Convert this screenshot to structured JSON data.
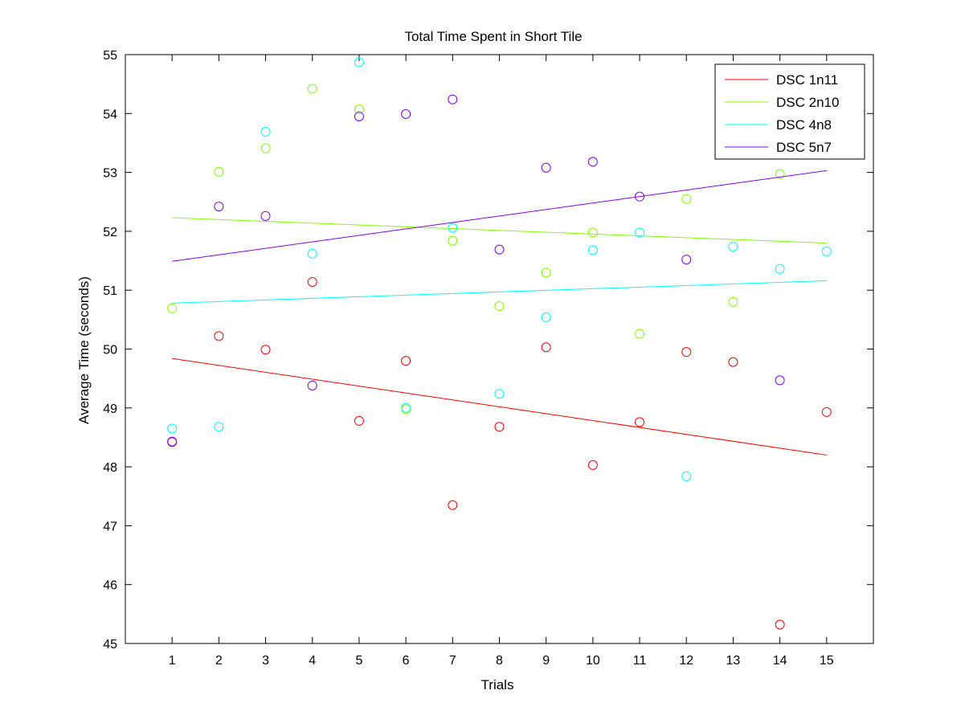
{
  "chart_data": {
    "type": "scatter",
    "title": "Total Time Spent in Short Tile",
    "xlabel": "Trials",
    "ylabel": "Average Time (seconds)",
    "xlim": [
      0,
      16
    ],
    "ylim": [
      45,
      55
    ],
    "xticks": [
      1,
      2,
      3,
      4,
      5,
      6,
      7,
      8,
      9,
      10,
      11,
      12,
      13,
      14,
      15
    ],
    "yticks": [
      45,
      46,
      47,
      48,
      49,
      50,
      51,
      52,
      53,
      54,
      55
    ],
    "grid": false,
    "legend_position": "top-right",
    "x": [
      1,
      2,
      3,
      4,
      5,
      6,
      7,
      8,
      9,
      10,
      11,
      12,
      13,
      14,
      15
    ],
    "series": [
      {
        "name": "DSC 1n11",
        "color": "#ff0000",
        "values": [
          48.42,
          50.22,
          49.99,
          51.14,
          48.78,
          49.8,
          47.35,
          48.68,
          50.03,
          48.03,
          48.76,
          49.95,
          49.78,
          45.32,
          48.93
        ],
        "fit": {
          "x": [
            1,
            15
          ],
          "y": [
            49.84,
            48.2
          ]
        }
      },
      {
        "name": "DSC 2n10",
        "color": "#80ff00",
        "values": [
          50.69,
          53.01,
          53.41,
          54.42,
          54.07,
          48.98,
          51.84,
          50.73,
          51.3,
          51.98,
          50.26,
          52.55,
          50.8,
          52.97,
          53.3
        ],
        "fit": {
          "x": [
            1,
            15
          ],
          "y": [
            52.23,
            51.8
          ]
        }
      },
      {
        "name": "DSC 4n8",
        "color": "#00ffff",
        "values": [
          48.65,
          48.68,
          53.69,
          51.62,
          54.87,
          49.0,
          52.06,
          49.24,
          50.54,
          51.68,
          51.98,
          47.84,
          51.74,
          51.36,
          51.66
        ],
        "fit": {
          "x": [
            1,
            15
          ],
          "y": [
            50.78,
            51.16
          ]
        }
      },
      {
        "name": "DSC 5n7",
        "color": "#8000ff",
        "values": [
          48.43,
          52.42,
          52.26,
          49.38,
          53.95,
          53.99,
          54.24,
          51.69,
          53.08,
          53.18,
          52.59,
          51.52,
          null,
          49.47,
          null
        ],
        "fit": {
          "x": [
            1,
            15
          ],
          "y": [
            51.49,
            53.03
          ]
        }
      }
    ]
  }
}
